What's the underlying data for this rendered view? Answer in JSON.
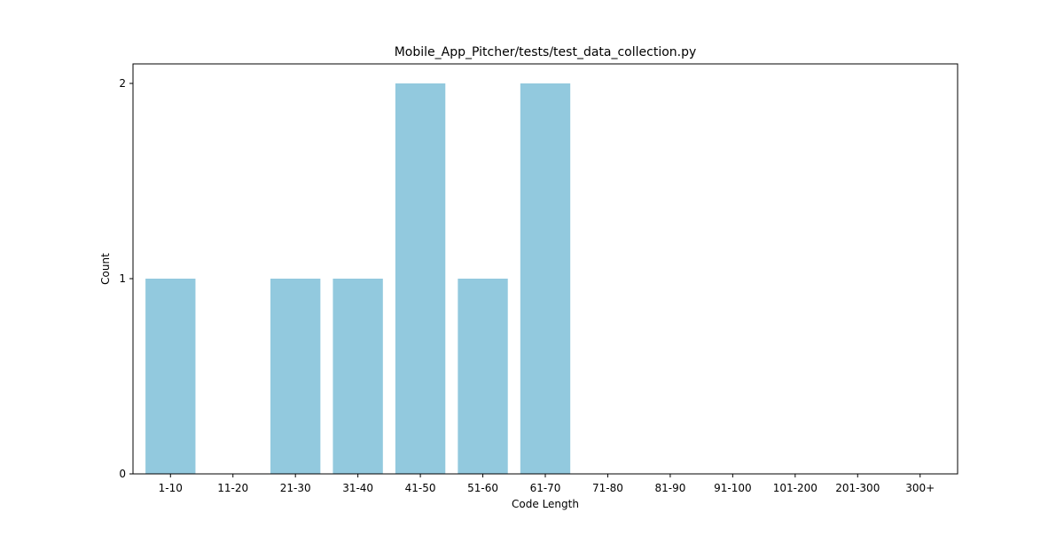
{
  "chart_data": {
    "type": "bar",
    "title": "Mobile_App_Pitcher/tests/test_data_collection.py",
    "xlabel": "Code Length",
    "ylabel": "Count",
    "categories": [
      "1-10",
      "11-20",
      "21-30",
      "31-40",
      "41-50",
      "51-60",
      "61-70",
      "71-80",
      "81-90",
      "91-100",
      "101-200",
      "201-300",
      "300+"
    ],
    "values": [
      1,
      0,
      1,
      1,
      2,
      1,
      2,
      0,
      0,
      0,
      0,
      0,
      0
    ],
    "ylim": [
      0,
      2.1
    ],
    "yticks": [
      0,
      1,
      2
    ],
    "bar_color": "#92c9de",
    "grid": false,
    "legend": "none"
  }
}
